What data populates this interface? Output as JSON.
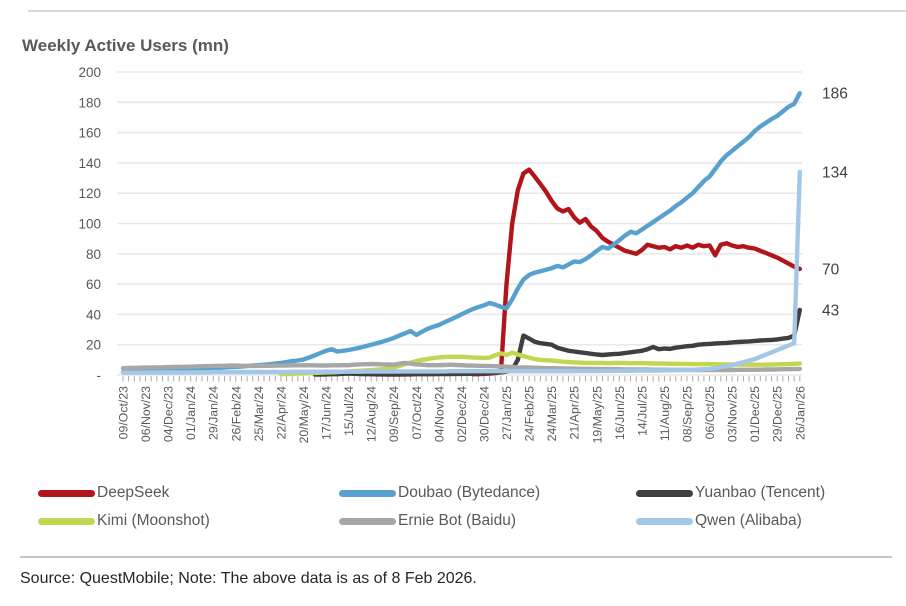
{
  "header": {
    "title": "Weekly Active Users (mn)"
  },
  "footer": {
    "source_note": "Source: QuestMobile; Note: The above data is as of 8 Feb 2026."
  },
  "legend": {
    "items": [
      {
        "label": "DeepSeek",
        "color": "#b2141b"
      },
      {
        "label": "Doubao (Bytedance)",
        "color": "#58a1cf"
      },
      {
        "label": "Yuanbao (Tencent)",
        "color": "#3f3f3f"
      },
      {
        "label": "Kimi (Moonshot)",
        "color": "#c3d64f"
      },
      {
        "label": "Ernie Bot (Baidu)",
        "color": "#a7a7a7"
      },
      {
        "label": "Qwen (Alibaba)",
        "color": "#a3c7e6"
      }
    ]
  },
  "chart_data": {
    "type": "line",
    "title": "Weekly Active Users (mn)",
    "ylim": [
      0,
      200
    ],
    "ytick_step": 20,
    "ytick_labels": [
      "-",
      "20",
      "40",
      "60",
      "80",
      "100",
      "120",
      "140",
      "160",
      "180",
      "200"
    ],
    "grid": true,
    "legend_position": "bottom",
    "weeks_per_label": 4,
    "x_tick_labels": [
      "09/Oct/23",
      "06/Nov/23",
      "04/Dec/23",
      "01/Jan/24",
      "29/Jan/24",
      "26/Feb/24",
      "25/Mar/24",
      "22/Apr/24",
      "20/May/24",
      "17/Jun/24",
      "15/Jul/24",
      "12/Aug/24",
      "09/Sep/24",
      "07/Oct/24",
      "04/Nov/24",
      "02/Dec/24",
      "30/Dec/24",
      "27/Jan/25",
      "24/Feb/25",
      "24/Mar/25",
      "21/Apr/25",
      "19/May/25",
      "16/Jun/25",
      "14/Jul/25",
      "11/Aug/25",
      "08/Sep/25",
      "06/Oct/25",
      "03/Nov/25",
      "01/Dec/25",
      "29/Dec/25",
      "26/Jan/26"
    ],
    "end_labels": [
      {
        "text": "186",
        "value": 186
      },
      {
        "text": "134",
        "value": 134
      },
      {
        "text": "70",
        "value": 70
      },
      {
        "text": "43",
        "value": 43
      }
    ],
    "series": [
      {
        "name": "DeepSeek",
        "color": "#b2141b",
        "values": [
          null,
          null,
          null,
          null,
          null,
          null,
          null,
          null,
          null,
          null,
          null,
          null,
          null,
          null,
          null,
          null,
          null,
          null,
          null,
          null,
          null,
          null,
          null,
          null,
          null,
          null,
          null,
          null,
          null,
          null,
          null,
          null,
          null,
          null,
          null,
          null,
          null,
          null,
          null,
          null,
          null,
          null,
          null,
          null,
          null,
          null,
          null,
          null,
          null,
          null,
          null,
          null,
          null,
          null,
          null,
          null,
          null,
          null,
          null,
          null,
          null,
          null,
          0.5,
          0.5,
          0.8,
          1,
          1.2,
          2,
          60,
          100,
          122,
          133,
          135.5,
          131,
          126,
          121,
          115,
          110,
          108,
          109.5,
          104,
          100.5,
          103,
          98,
          95,
          90.5,
          88,
          86,
          84,
          82,
          81,
          80,
          82.5,
          86,
          85,
          84,
          84.5,
          83,
          85,
          84,
          85.5,
          84,
          86,
          85,
          85.5,
          79,
          86,
          87,
          85.5,
          84.5,
          85,
          84,
          83.5,
          82,
          80.5,
          79,
          77.5,
          75.5,
          73.5,
          71.5,
          70
        ]
      },
      {
        "name": "Doubao (Bytedance)",
        "color": "#58a1cf",
        "values": [
          2,
          2,
          2.1,
          2.2,
          2.3,
          2.4,
          2.5,
          2.6,
          2.8,
          3,
          3.1,
          3.3,
          3.5,
          3.8,
          4,
          4.2,
          4.5,
          4.7,
          5,
          5.2,
          5.4,
          5.6,
          5.9,
          6.2,
          6.5,
          6.8,
          7.1,
          7.5,
          8,
          8.5,
          9.2,
          9.6,
          10.2,
          11.5,
          13,
          14.5,
          16,
          17,
          15.5,
          16,
          16.5,
          17.2,
          18,
          19,
          20,
          21,
          22,
          23.2,
          24.5,
          26,
          27.5,
          29,
          26.5,
          28.5,
          30.5,
          31.8,
          33,
          34.8,
          36.5,
          38.2,
          40,
          41.8,
          43.5,
          44.8,
          46,
          47.5,
          46.5,
          45,
          44,
          50,
          57,
          63,
          66,
          67.5,
          68.5,
          69.5,
          70.5,
          72,
          71,
          73,
          75,
          74.5,
          76.5,
          79,
          82,
          84.5,
          83.5,
          86,
          89,
          92,
          94.5,
          93.5,
          96,
          98.5,
          101,
          103.5,
          106,
          108.5,
          111.5,
          114,
          117,
          120,
          124,
          128,
          131,
          136,
          141,
          145,
          148,
          151,
          154,
          157,
          161,
          164,
          166.5,
          169,
          171,
          174,
          177,
          179,
          186
        ]
      },
      {
        "name": "Yuanbao (Tencent)",
        "color": "#3f3f3f",
        "values": [
          null,
          null,
          null,
          null,
          null,
          null,
          null,
          null,
          null,
          null,
          null,
          null,
          null,
          null,
          null,
          null,
          null,
          null,
          null,
          null,
          null,
          null,
          null,
          null,
          null,
          null,
          null,
          null,
          null,
          null,
          null,
          null,
          null,
          null,
          0.3,
          0.3,
          0.4,
          0.5,
          0.5,
          0.8,
          1,
          0.8,
          0.6,
          0.5,
          0.5,
          0.4,
          0.4,
          0.3,
          0.3,
          0.3,
          0.4,
          0.4,
          0.5,
          0.5,
          0.5,
          0.5,
          0.6,
          0.6,
          0.6,
          0.7,
          0.7,
          0.8,
          0.8,
          0.9,
          1,
          1.2,
          1.5,
          1.8,
          2.2,
          3.5,
          10,
          26,
          24,
          22,
          21,
          20.5,
          20,
          18,
          17,
          16,
          15.5,
          15,
          14.5,
          14,
          13.5,
          13.2,
          13.5,
          13.8,
          14,
          14.5,
          15,
          15.5,
          16,
          17,
          18.5,
          17,
          17.5,
          17.2,
          18,
          18.5,
          19,
          19.3,
          20,
          20.3,
          20.5,
          20.8,
          21,
          21.2,
          21.5,
          21.8,
          22,
          22.2,
          22.5,
          22.8,
          23,
          23.2,
          23.5,
          24,
          24.5,
          26,
          43
        ]
      },
      {
        "name": "Kimi (Moonshot)",
        "color": "#c3d64f",
        "values": [
          null,
          null,
          null,
          null,
          null,
          null,
          null,
          null,
          null,
          null,
          null,
          null,
          null,
          null,
          null,
          null,
          null,
          null,
          null,
          null,
          null,
          null,
          null,
          null,
          null,
          null,
          null,
          null,
          0.5,
          0.6,
          0.8,
          0.9,
          1,
          1.2,
          1.4,
          1.5,
          1.7,
          1.8,
          2,
          2.2,
          2.4,
          2.6,
          2.8,
          3,
          3.2,
          3.5,
          3.8,
          4.2,
          5,
          6,
          7.2,
          8.2,
          9.2,
          10,
          10.6,
          11.2,
          11.6,
          11.9,
          12,
          12,
          12,
          11.8,
          11.5,
          11.4,
          11.3,
          11.5,
          13,
          14.3,
          13.2,
          14.8,
          13.5,
          12.5,
          11.5,
          10.5,
          10,
          9.8,
          9.5,
          9.2,
          8.8,
          8.5,
          8.3,
          8.2,
          8,
          8,
          8,
          7.9,
          7.8,
          7.9,
          8,
          7.9,
          7.8,
          7.8,
          7.8,
          7.7,
          7.6,
          7.5,
          7.5,
          7.4,
          7.4,
          7.3,
          7.3,
          7.2,
          7.2,
          7.2,
          7.2,
          7.1,
          7,
          7,
          7,
          6.9,
          6.8,
          6.8,
          6.8,
          6.8,
          6.8,
          6.9,
          7,
          7.1,
          7.2,
          7.4,
          7.5
        ]
      },
      {
        "name": "Ernie Bot (Baidu)",
        "color": "#a7a7a7",
        "values": [
          4.5,
          4.6,
          4.7,
          4.8,
          4.9,
          5,
          5,
          5.1,
          5.2,
          5.3,
          5.4,
          5.4,
          5.5,
          5.6,
          5.8,
          5.9,
          6,
          6.1,
          6.1,
          6.2,
          6.2,
          6.1,
          6.1,
          6,
          6,
          6.1,
          6.1,
          6.2,
          6.2,
          6.3,
          6.4,
          6.4,
          6.5,
          6.4,
          6.4,
          6.3,
          6.3,
          6.4,
          6.4,
          6.5,
          6.5,
          6.8,
          7,
          7.1,
          7.2,
          7.1,
          7,
          6.9,
          6.8,
          7.5,
          8,
          7.5,
          7,
          6.8,
          6.5,
          6.5,
          6.5,
          6.6,
          6.8,
          6.6,
          6.5,
          6.3,
          6.2,
          6.1,
          6,
          5.9,
          5.8,
          5.6,
          5.5,
          5.3,
          5.1,
          5,
          4.9,
          4.8,
          4.6,
          4.5,
          4.5,
          4.4,
          4.3,
          4.2,
          4.2,
          4.1,
          4.1,
          4,
          4,
          3.9,
          3.9,
          3.8,
          3.8,
          3.7,
          3.7,
          3.6,
          3.6,
          3.6,
          3.5,
          3.5,
          3.5,
          3.4,
          3.4,
          3.4,
          3.4,
          3.3,
          3.3,
          3.3,
          3.3,
          3.3,
          3.3,
          3.3,
          3.3,
          3.4,
          3.4,
          3.4,
          3.5,
          3.5,
          3.6,
          3.6,
          3.7,
          3.8,
          3.9,
          3.9,
          4
        ]
      },
      {
        "name": "Qwen (Alibaba)",
        "color": "#a3c7e6",
        "values": [
          1.5,
          1.5,
          1.5,
          1.6,
          1.6,
          1.6,
          1.6,
          1.7,
          1.7,
          1.7,
          1.7,
          1.8,
          1.8,
          1.8,
          1.8,
          1.8,
          1.9,
          1.9,
          1.9,
          1.9,
          2,
          2,
          2,
          2,
          2,
          2,
          2,
          2,
          2,
          2,
          2.1,
          2.1,
          2.1,
          2.1,
          2.1,
          2.1,
          2.2,
          2.2,
          2.2,
          2.2,
          2.2,
          2.2,
          2.2,
          2.3,
          2.3,
          2.3,
          2.3,
          2.3,
          2.3,
          2.3,
          2.4,
          2.4,
          2.4,
          2.4,
          2.4,
          2.4,
          2.4,
          2.4,
          2.5,
          2.5,
          2.5,
          2.5,
          2.5,
          2.5,
          2.5,
          2.5,
          2.5,
          2.5,
          2.5,
          2.5,
          2.5,
          2.5,
          2.5,
          2.5,
          2.5,
          2.5,
          2.5,
          2.5,
          2.5,
          2.5,
          2.5,
          2.6,
          2.6,
          2.6,
          2.6,
          2.7,
          2.7,
          2.7,
          2.8,
          2.8,
          2.8,
          2.9,
          2.9,
          3,
          3,
          3,
          3.1,
          3.1,
          3.2,
          3.2,
          3.3,
          3.4,
          3.6,
          3.8,
          4,
          4.5,
          5.2,
          5.8,
          6.5,
          7.5,
          8.5,
          9.5,
          10.5,
          12,
          13.5,
          15,
          16.5,
          18,
          19.5,
          21,
          134
        ]
      }
    ]
  }
}
